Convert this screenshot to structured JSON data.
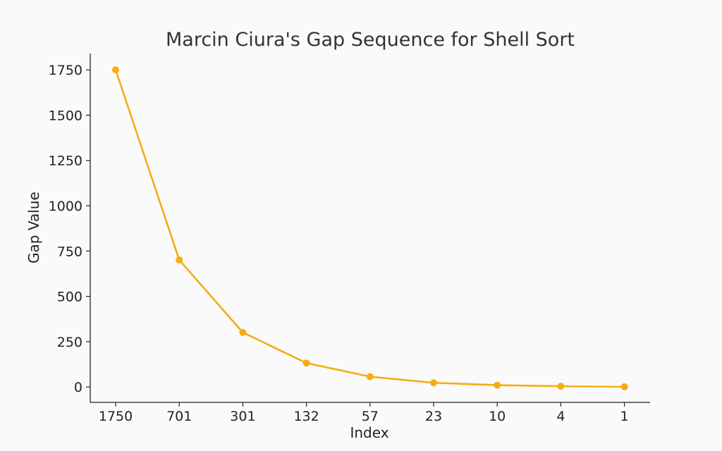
{
  "chart_data": {
    "type": "line",
    "title": "Marcin Ciura's Gap Sequence for Shell Sort",
    "xlabel": "Index",
    "ylabel": "Gap Value",
    "categories": [
      "1750",
      "701",
      "301",
      "132",
      "57",
      "23",
      "10",
      "4",
      "1"
    ],
    "series": [
      {
        "values": [
          1750,
          701,
          301,
          132,
          57,
          23,
          10,
          4,
          1
        ],
        "color": "#f5ad14",
        "marker": "circle"
      }
    ],
    "yticks": [
      0,
      250,
      500,
      750,
      1000,
      1250,
      1500,
      1750
    ],
    "ylim": [
      -85,
      1840
    ],
    "grid": false,
    "legend": "none"
  }
}
